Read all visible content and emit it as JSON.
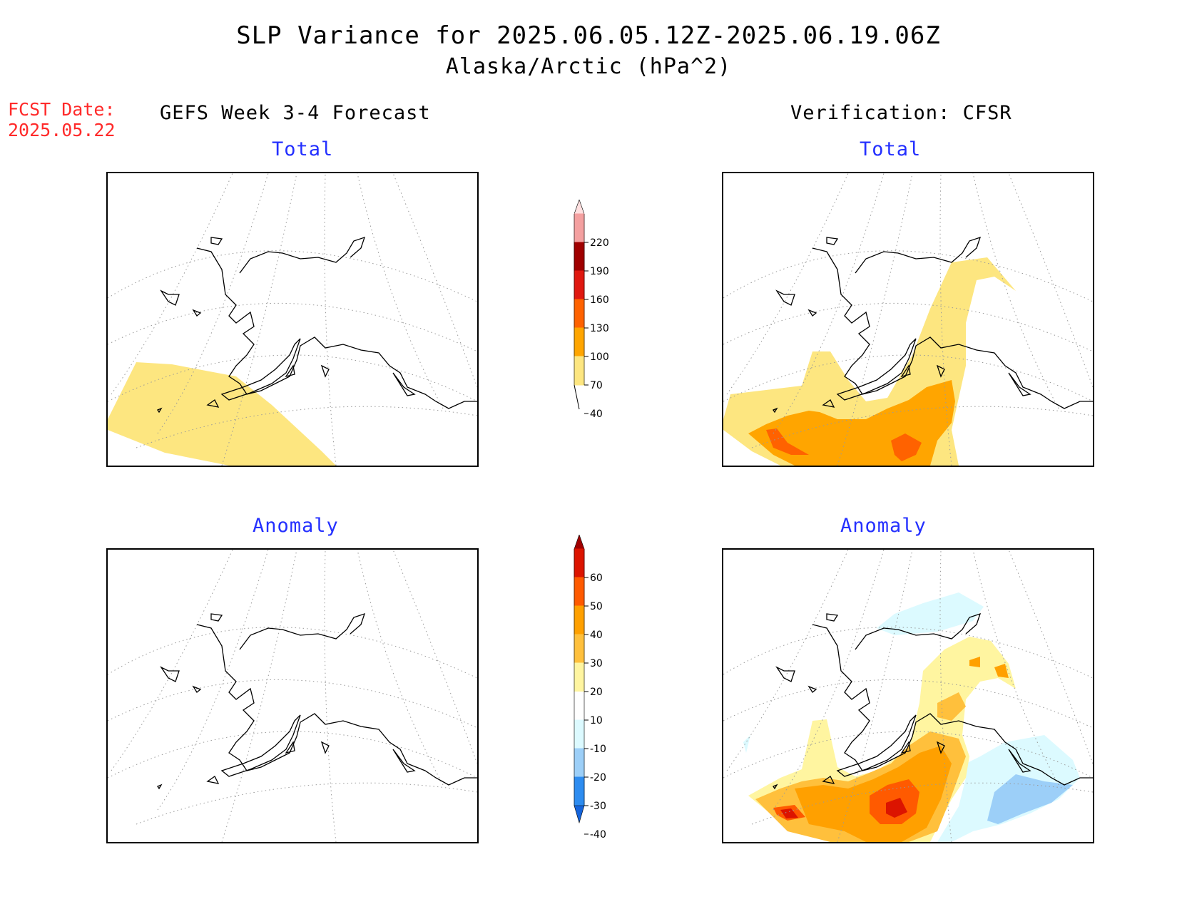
{
  "header": {
    "title": "SLP Variance for 2025.06.05.12Z-2025.06.19.06Z",
    "subtitle": "Alaska/Arctic (hPa^2)",
    "fcst_label": "FCST Date:",
    "fcst_date": "2025.05.22"
  },
  "columns": {
    "left": "GEFS Week 3-4 Forecast",
    "right": "Verification: CFSR"
  },
  "panels": {
    "forecast_total": "Total",
    "verification_total": "Total",
    "forecast_anomaly": "Anomaly",
    "verification_anomaly": "Anomaly"
  },
  "colorbars": {
    "total": {
      "labels": [
        "40",
        "70",
        "100",
        "130",
        "160",
        "190",
        "220"
      ],
      "colors": [
        "#fde680",
        "#ffa500",
        "#ff6200",
        "#e01810",
        "#a00000",
        "#f4a0a0",
        "#ffe0e0"
      ]
    },
    "anomaly": {
      "labels": [
        "-40",
        "-30",
        "-20",
        "-10",
        "10",
        "20",
        "30",
        "40",
        "50",
        "60"
      ],
      "colors": [
        "#1464dc",
        "#2d8cf0",
        "#9ccff8",
        "#dcfaff",
        "#ffffff",
        "#fff5a0",
        "#ffc03c",
        "#ffa000",
        "#ff5a00",
        "#dc1400",
        "#a00000"
      ]
    }
  },
  "legend_colors": {
    "title_blue": "#2430ff",
    "fcst_red": "#ff2a2a"
  }
}
